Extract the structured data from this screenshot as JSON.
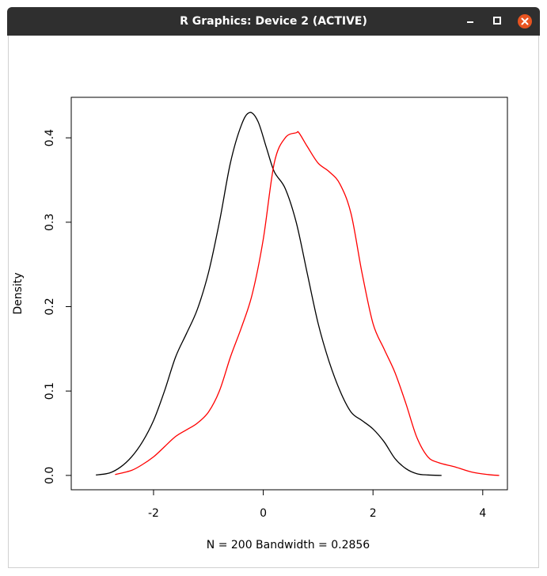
{
  "window": {
    "title": "R Graphics: Device 2 (ACTIVE)",
    "buttons": {
      "minimize": "minimize-icon",
      "maximize": "maximize-icon",
      "close": "close-icon"
    },
    "close_color": "#e95420"
  },
  "chart_data": {
    "type": "line",
    "title": "",
    "xlabel": "N = 200   Bandwidth = 0.2856",
    "ylabel": "Density",
    "xlim": [
      -3.5,
      4.45
    ],
    "ylim": [
      -0.017,
      0.448
    ],
    "xticks": [
      -2,
      0,
      2,
      4
    ],
    "xtick_labels": [
      "-2",
      "0",
      "2",
      "4"
    ],
    "yticks": [
      0.0,
      0.1,
      0.2,
      0.3,
      0.4
    ],
    "ytick_labels": [
      "0.0",
      "0.1",
      "0.2",
      "0.3",
      "0.4"
    ],
    "grid": false,
    "legend": "none",
    "series": [
      {
        "color": "#000000",
        "x": [
          -3.05,
          -2.8,
          -2.6,
          -2.4,
          -2.2,
          -2.0,
          -1.8,
          -1.6,
          -1.4,
          -1.2,
          -1.0,
          -0.8,
          -0.6,
          -0.4,
          -0.25,
          -0.1,
          0.05,
          0.2,
          0.4,
          0.6,
          0.8,
          1.0,
          1.2,
          1.4,
          1.6,
          1.8,
          2.0,
          2.2,
          2.4,
          2.6,
          2.8,
          3.0,
          3.25
        ],
        "y": [
          0.0005,
          0.003,
          0.01,
          0.022,
          0.04,
          0.065,
          0.1,
          0.14,
          0.168,
          0.197,
          0.24,
          0.3,
          0.37,
          0.415,
          0.43,
          0.42,
          0.39,
          0.36,
          0.34,
          0.3,
          0.24,
          0.18,
          0.135,
          0.1,
          0.075,
          0.065,
          0.055,
          0.04,
          0.02,
          0.008,
          0.002,
          0.0005,
          0.0
        ]
      },
      {
        "color": "#ff0000",
        "x": [
          -2.7,
          -2.4,
          -2.2,
          -2.0,
          -1.8,
          -1.6,
          -1.4,
          -1.2,
          -1.0,
          -0.8,
          -0.6,
          -0.4,
          -0.2,
          0.0,
          0.2,
          0.4,
          0.6,
          0.65,
          0.8,
          1.0,
          1.2,
          1.4,
          1.6,
          1.8,
          2.0,
          2.2,
          2.4,
          2.6,
          2.8,
          3.0,
          3.2,
          3.5,
          3.8,
          4.1,
          4.3
        ],
        "y": [
          0.001,
          0.006,
          0.013,
          0.022,
          0.034,
          0.046,
          0.054,
          0.062,
          0.075,
          0.1,
          0.14,
          0.175,
          0.215,
          0.28,
          0.37,
          0.4,
          0.406,
          0.406,
          0.39,
          0.37,
          0.36,
          0.345,
          0.31,
          0.24,
          0.18,
          0.15,
          0.122,
          0.085,
          0.045,
          0.022,
          0.015,
          0.01,
          0.004,
          0.001,
          0.0
        ]
      }
    ]
  }
}
